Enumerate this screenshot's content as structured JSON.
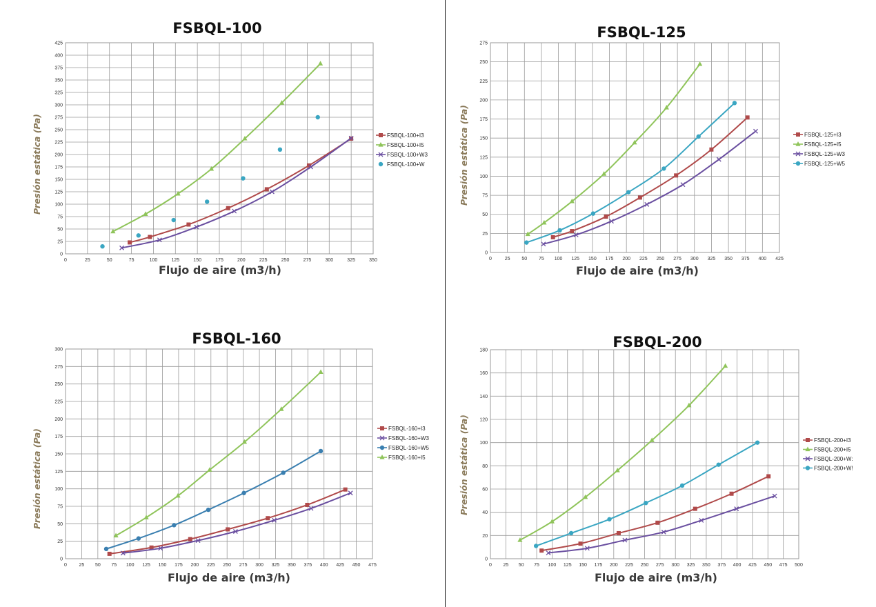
{
  "chart_data": [
    {
      "type": "line",
      "title": "FSBQL-100",
      "xlabel": "Flujo de aire (m3/h)",
      "ylabel": "Presión estática (Pa)",
      "xlim": [
        0,
        350
      ],
      "xstep": 25,
      "ylim": [
        0,
        425
      ],
      "ystep": 25,
      "grid": true,
      "legend_position": "right",
      "series": [
        {
          "name": "FSBQL-100+I3",
          "color": "#b04a4a",
          "marker": "square",
          "x": [
            73,
            96,
            140,
            185,
            229,
            277,
            325
          ],
          "y": [
            23,
            34,
            59,
            92,
            130,
            178,
            232
          ]
        },
        {
          "name": "FSBQL-100+I5",
          "color": "#8fc45a",
          "marker": "triangle",
          "x": [
            54,
            91,
            128,
            166,
            204,
            246,
            290
          ],
          "y": [
            45,
            80,
            121,
            171,
            232,
            304,
            383
          ]
        },
        {
          "name": "FSBQL-100+W3",
          "color": "#6a4fa0",
          "marker": "x",
          "x": [
            64,
            107,
            149,
            192,
            235,
            279,
            325
          ],
          "y": [
            12,
            28,
            54,
            86,
            125,
            175,
            233
          ]
        },
        {
          "name": "FSBQL-100+W",
          "color": "#3aa6c2",
          "marker": "circle",
          "line": false,
          "x": [
            42,
            83,
            123,
            161,
            202,
            244,
            287
          ],
          "y": [
            15,
            37,
            68,
            105,
            152,
            210,
            275
          ]
        }
      ]
    },
    {
      "type": "line",
      "title": "FSBQL-125",
      "xlabel": "Flujo de aire (m3/h)",
      "ylabel": "Presión estática (Pa)",
      "xlim": [
        0,
        425
      ],
      "xstep": 25,
      "ylim": [
        0,
        275
      ],
      "ystep": 25,
      "grid": true,
      "legend_position": "right",
      "series": [
        {
          "name": "FSBQL-125+I3",
          "color": "#b04a4a",
          "marker": "square",
          "x": [
            92,
            120,
            170,
            220,
            273,
            325,
            378
          ],
          "y": [
            20,
            28,
            47,
            72,
            101,
            135,
            177
          ]
        },
        {
          "name": "FSBQL-125+I5",
          "color": "#8fc45a",
          "marker": "triangle",
          "x": [
            55,
            79,
            120,
            167,
            212,
            259,
            308
          ],
          "y": [
            24,
            39,
            67,
            103,
            144,
            190,
            247
          ]
        },
        {
          "name": "FSBQL-125+W3",
          "color": "#6a4fa0",
          "marker": "x",
          "x": [
            78,
            126,
            178,
            230,
            283,
            336,
            390
          ],
          "y": [
            11,
            23,
            41,
            63,
            89,
            122,
            159
          ]
        },
        {
          "name": "FSBQL-125+W5",
          "color": "#3aa6c2",
          "marker": "circle",
          "x": [
            53,
            102,
            151,
            203,
            255,
            306,
            359
          ],
          "y": [
            13,
            29,
            51,
            79,
            110,
            152,
            196
          ]
        }
      ]
    },
    {
      "type": "line",
      "title": "FSBQL-160",
      "xlabel": "Flujo de aire (m3/h)",
      "ylabel": "Presión estática (Pa)",
      "xlim": [
        0,
        475
      ],
      "xstep": 25,
      "ylim": [
        0,
        300
      ],
      "ystep": 25,
      "grid": true,
      "legend_position": "right",
      "series": [
        {
          "name": "FSBQL-160+I3",
          "color": "#b04a4a",
          "marker": "square",
          "x": [
            68,
            133,
            193,
            251,
            313,
            374,
            433
          ],
          "y": [
            7,
            16,
            28,
            42,
            58,
            77,
            99
          ]
        },
        {
          "name": "FSBQL-160+W3",
          "color": "#6a4fa0",
          "marker": "x",
          "x": [
            89,
            147,
            205,
            263,
            323,
            380,
            441
          ],
          "y": [
            8,
            15,
            26,
            39,
            55,
            72,
            94
          ]
        },
        {
          "name": "FSBQL-160+W5",
          "color": "#3a7fb0",
          "marker": "circle",
          "x": [
            63,
            113,
            168,
            221,
            276,
            337,
            395
          ],
          "y": [
            14,
            29,
            48,
            70,
            94,
            123,
            154
          ]
        },
        {
          "name": "FSBQL-160+I5",
          "color": "#8fc45a",
          "marker": "triangle",
          "x": [
            78,
            125,
            174,
            223,
            277,
            334,
            395
          ],
          "y": [
            33,
            59,
            90,
            127,
            167,
            214,
            267
          ]
        }
      ]
    },
    {
      "type": "line",
      "title": "FSBQL-200",
      "xlabel": "Flujo de aire (m3/h)",
      "ylabel": "Presión estática (Pa)",
      "xlim": [
        0,
        500
      ],
      "xstep": 25,
      "ylim": [
        0,
        180
      ],
      "ystep": 20,
      "grid": true,
      "legend_position": "right",
      "series": [
        {
          "name": "FSBQL-200+I3",
          "color": "#b04a4a",
          "marker": "square",
          "x": [
            83,
            146,
            208,
            271,
            332,
            391,
            451
          ],
          "y": [
            7,
            13,
            22,
            31,
            43,
            56,
            71
          ]
        },
        {
          "name": "FSBQL-200+I5",
          "color": "#8fc45a",
          "marker": "triangle",
          "x": [
            48,
            100,
            154,
            206,
            262,
            322,
            381
          ],
          "y": [
            16,
            32,
            53,
            76,
            102,
            132,
            166
          ]
        },
        {
          "name": "FSBQL-200+W:",
          "color": "#6a4fa0",
          "marker": "x",
          "x": [
            94,
            157,
            218,
            281,
            342,
            399,
            461
          ],
          "y": [
            5,
            9,
            16,
            23,
            33,
            43,
            54
          ]
        },
        {
          "name": "FSBQL-200+W!",
          "color": "#3aa6c2",
          "marker": "circle",
          "x": [
            74,
            131,
            193,
            252,
            311,
            370,
            433
          ],
          "y": [
            11,
            22,
            34,
            48,
            63,
            81,
            100
          ]
        }
      ]
    }
  ]
}
